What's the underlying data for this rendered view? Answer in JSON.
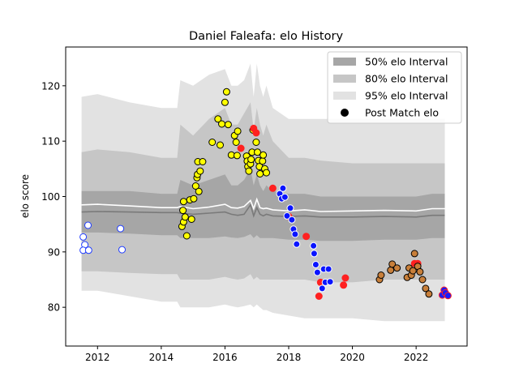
{
  "chart_data": {
    "type": "scatter",
    "title": "Daniel Faleafa: elo History",
    "xlabel": "",
    "ylabel": "elo score",
    "xlim": [
      2011.0,
      2023.6
    ],
    "ylim": [
      73,
      127
    ],
    "xticks": [
      2012,
      2014,
      2016,
      2018,
      2020,
      2022
    ],
    "xtick_labels": [
      "2012",
      "2014",
      "2016",
      "2018",
      "2020",
      "2022"
    ],
    "yticks": [
      80,
      90,
      100,
      110,
      120
    ],
    "ytick_labels": [
      "80",
      "90",
      "100",
      "110",
      "120"
    ],
    "grid": false,
    "legend_position": "top-right",
    "legend": [
      {
        "label": "50% elo Interval",
        "kind": "patch",
        "color": "#a6a6a6"
      },
      {
        "label": "80% elo Interval",
        "kind": "patch",
        "color": "#c6c6c6"
      },
      {
        "label": "95% elo Interval",
        "kind": "patch",
        "color": "#e2e2e2"
      },
      {
        "label": "Post Match elo",
        "kind": "marker",
        "color": "#000000"
      }
    ],
    "bands": {
      "x": [
        2011.5,
        2012.0,
        2013.0,
        2014.0,
        2014.5,
        2014.6,
        2015.0,
        2015.5,
        2016.0,
        2016.2,
        2016.4,
        2016.6,
        2016.8,
        2016.9,
        2017.0,
        2017.1,
        2017.2,
        2017.3,
        2017.5,
        2018.0,
        2018.5,
        2019.0,
        2020.0,
        2021.0,
        2022.0,
        2022.5,
        2022.9
      ],
      "p95_hi": [
        118,
        118.5,
        117,
        116,
        116,
        121,
        120,
        122,
        123,
        120,
        120,
        121,
        124,
        118,
        124,
        120,
        118,
        120,
        116,
        114,
        114,
        114,
        114,
        114,
        114,
        114,
        114
      ],
      "p80_hi": [
        108,
        108.5,
        108,
        107,
        107,
        113,
        111,
        114,
        116,
        113,
        113,
        115,
        117,
        112,
        116,
        113,
        111,
        113,
        110,
        107,
        107,
        106.5,
        106,
        106,
        106,
        106,
        106
      ],
      "p50_hi": [
        101,
        101,
        101,
        100.5,
        100.5,
        103,
        102,
        103,
        104,
        102,
        102,
        103,
        105,
        102,
        104,
        102,
        101,
        102,
        101,
        100.5,
        100.5,
        100,
        100,
        100,
        100,
        100.5,
        100.5
      ],
      "median": [
        97.2,
        97.3,
        97.2,
        97.1,
        97.1,
        97.0,
        96.8,
        97.0,
        97.2,
        96.8,
        96.6,
        96.8,
        98.5,
        96.5,
        98.0,
        96.8,
        96.5,
        96.8,
        96.5,
        96.4,
        96.5,
        96.3,
        96.3,
        96.4,
        96.3,
        96.6,
        96.6
      ],
      "mean": [
        98.5,
        98.6,
        98.3,
        98.0,
        98.0,
        98.2,
        97.8,
        98.1,
        98.6,
        98.0,
        97.9,
        98.2,
        99.3,
        97.8,
        99.5,
        98.0,
        97.8,
        97.9,
        97.6,
        97.4,
        97.6,
        97.3,
        97.4,
        97.5,
        97.4,
        97.8,
        97.8
      ],
      "p50_lo": [
        93.5,
        93.5,
        93.3,
        93.0,
        93.0,
        92.5,
        92.5,
        92.5,
        92.8,
        92.6,
        92.5,
        92.7,
        93.2,
        92.5,
        93.0,
        92.5,
        92.5,
        92.5,
        92.5,
        92.2,
        92.2,
        92.0,
        92.0,
        92.2,
        92.2,
        92.5,
        92.5
      ],
      "p80_lo": [
        86.5,
        86.5,
        86.2,
        86.0,
        86.0,
        85.0,
        85.0,
        85.0,
        85.5,
        85.2,
        85.0,
        85.2,
        86.0,
        85.0,
        85.5,
        85.0,
        85.0,
        85.0,
        85.0,
        85.0,
        85.0,
        84.5,
        84.5,
        85.0,
        85.0,
        85.0,
        85.0
      ],
      "p95_lo": [
        83.0,
        83.0,
        82.0,
        81.0,
        81.0,
        80.0,
        80.0,
        80.0,
        80.5,
        80.2,
        80.0,
        80.2,
        80.5,
        80.0,
        80.5,
        80.0,
        79.5,
        79.5,
        79.0,
        78.5,
        78.0,
        78.0,
        78.0,
        77.5,
        77.5,
        77.5,
        77.5
      ]
    },
    "series": [
      {
        "face": "#ffffff",
        "edge": "#1f3cff",
        "points": [
          [
            2011.55,
            92.7
          ],
          [
            2011.6,
            91.3
          ],
          [
            2011.55,
            90.3
          ],
          [
            2011.72,
            90.3
          ],
          [
            2011.7,
            94.8
          ],
          [
            2012.72,
            94.2
          ],
          [
            2012.77,
            90.4
          ]
        ]
      },
      {
        "face": "#ffff00",
        "edge": "#000000",
        "points": [
          [
            2014.65,
            94.6
          ],
          [
            2014.7,
            95.4
          ],
          [
            2014.75,
            96.3
          ],
          [
            2014.68,
            97.5
          ],
          [
            2014.7,
            99.1
          ],
          [
            2014.8,
            92.9
          ],
          [
            2014.9,
            99.4
          ],
          [
            2014.95,
            95.9
          ],
          [
            2015.02,
            99.6
          ],
          [
            2015.08,
            101.9
          ],
          [
            2015.12,
            103.4
          ],
          [
            2015.15,
            106.3
          ],
          [
            2015.18,
            100.9
          ],
          [
            2015.14,
            104.0
          ],
          [
            2015.22,
            104.6
          ],
          [
            2015.3,
            106.3
          ],
          [
            2015.6,
            109.8
          ],
          [
            2015.78,
            114.0
          ],
          [
            2015.85,
            109.3
          ],
          [
            2015.9,
            113.1
          ],
          [
            2016.0,
            117.0
          ],
          [
            2016.05,
            118.9
          ],
          [
            2016.1,
            113.0
          ],
          [
            2016.2,
            107.5
          ],
          [
            2016.3,
            111.0
          ],
          [
            2016.35,
            109.8
          ],
          [
            2016.38,
            107.4
          ],
          [
            2016.4,
            111.8
          ],
          [
            2016.68,
            107.3
          ],
          [
            2016.7,
            106.4
          ],
          [
            2016.72,
            105.4
          ],
          [
            2016.75,
            104.6
          ],
          [
            2016.8,
            105.9
          ],
          [
            2016.82,
            106.7
          ],
          [
            2016.85,
            108.0
          ],
          [
            2016.88,
            112.0
          ],
          [
            2016.98,
            109.8
          ],
          [
            2017.02,
            108.0
          ],
          [
            2017.05,
            106.5
          ],
          [
            2017.08,
            105.4
          ],
          [
            2017.1,
            104.1
          ],
          [
            2017.18,
            106.4
          ],
          [
            2017.2,
            107.5
          ],
          [
            2017.25,
            105.0
          ],
          [
            2017.3,
            104.3
          ]
        ]
      },
      {
        "face": "#ff2020",
        "edge": "#ff2020",
        "points": [
          [
            2016.5,
            108.7
          ],
          [
            2016.9,
            112.3
          ],
          [
            2016.98,
            111.5
          ],
          [
            2017.5,
            101.5
          ],
          [
            2018.0,
            96.4
          ],
          [
            2018.55,
            92.8
          ],
          [
            2018.95,
            82.0
          ],
          [
            2019.0,
            84.5
          ],
          [
            2019.72,
            84.0
          ],
          [
            2019.78,
            85.3
          ],
          [
            2021.95,
            87.9
          ],
          [
            2022.05,
            87.9
          ]
        ]
      },
      {
        "face": "#0a14ff",
        "edge": "#ffffff",
        "points": [
          [
            2017.72,
            100.5
          ],
          [
            2017.78,
            99.6
          ],
          [
            2017.82,
            101.5
          ],
          [
            2017.88,
            99.9
          ],
          [
            2017.95,
            96.5
          ],
          [
            2018.05,
            97.9
          ],
          [
            2018.1,
            95.8
          ],
          [
            2018.15,
            94.1
          ],
          [
            2018.2,
            93.2
          ],
          [
            2018.25,
            91.4
          ],
          [
            2018.78,
            91.1
          ],
          [
            2018.8,
            89.7
          ],
          [
            2018.85,
            87.7
          ],
          [
            2018.9,
            86.3
          ],
          [
            2019.05,
            83.4
          ],
          [
            2019.1,
            86.9
          ],
          [
            2019.15,
            84.5
          ],
          [
            2019.25,
            86.9
          ],
          [
            2019.3,
            84.6
          ],
          [
            2022.85,
            82.5
          ],
          [
            2022.95,
            82.2
          ]
        ]
      },
      {
        "face": "#c87f3a",
        "edge": "#000000",
        "points": [
          [
            2020.85,
            85.0
          ],
          [
            2020.9,
            85.8
          ],
          [
            2021.2,
            86.7
          ],
          [
            2021.25,
            87.8
          ],
          [
            2021.4,
            87.1
          ],
          [
            2021.72,
            85.4
          ],
          [
            2021.78,
            87.1
          ],
          [
            2021.85,
            85.8
          ],
          [
            2021.9,
            86.6
          ],
          [
            2021.95,
            89.7
          ],
          [
            2022.05,
            87.4
          ],
          [
            2022.12,
            86.4
          ],
          [
            2022.2,
            85.0
          ],
          [
            2022.3,
            83.4
          ],
          [
            2022.4,
            82.4
          ]
        ]
      },
      {
        "face": "#1a1aff",
        "edge": "#ff2020",
        "points": [
          [
            2022.82,
            82.2
          ],
          [
            2022.88,
            83.1
          ],
          [
            2022.92,
            82.6
          ],
          [
            2023.0,
            82.1
          ]
        ]
      }
    ]
  }
}
